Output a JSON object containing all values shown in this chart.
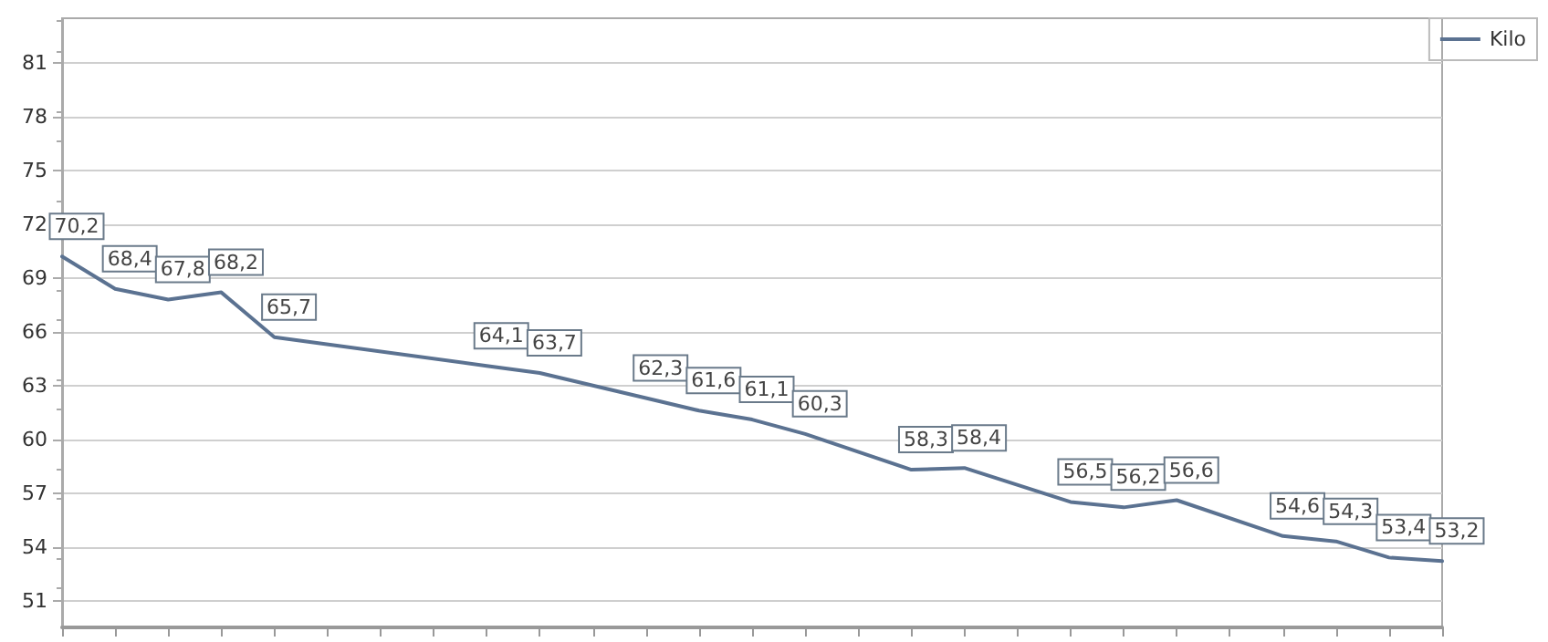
{
  "chart_data": {
    "type": "line",
    "categories": [
      null,
      null,
      null,
      null,
      null,
      null,
      null,
      null,
      null,
      null,
      null,
      null,
      null,
      null,
      null,
      null,
      null,
      null,
      null,
      null,
      null,
      null,
      null,
      null,
      null,
      null,
      null
    ],
    "series": [
      {
        "name": "Kilo",
        "color": "#5b7291",
        "values": [
          70.2,
          68.4,
          67.8,
          68.2,
          65.7,
          null,
          null,
          null,
          64.1,
          63.7,
          null,
          62.3,
          61.6,
          61.1,
          60.3,
          null,
          58.3,
          58.4,
          null,
          56.5,
          56.2,
          56.6,
          null,
          54.6,
          54.3,
          53.4,
          53.2
        ],
        "value_labels": [
          "70,2",
          "68,4",
          "67,8",
          "68,2",
          "65,7",
          null,
          null,
          null,
          "64,1",
          "63,7",
          null,
          "62,3",
          "61,6",
          "61,1",
          "60,3",
          null,
          "58,3",
          "58,4",
          null,
          "56,5",
          "56,2",
          "56,6",
          null,
          "54,6",
          "54,3",
          "53,4",
          "53,2"
        ]
      }
    ],
    "ylim": [
      49.5,
      83.5
    ],
    "yticks": [
      51,
      54,
      57,
      60,
      63,
      66,
      69,
      72,
      75,
      78,
      81
    ],
    "grid": "y",
    "legend": "top right",
    "marker": "none",
    "line_style": "solid"
  }
}
